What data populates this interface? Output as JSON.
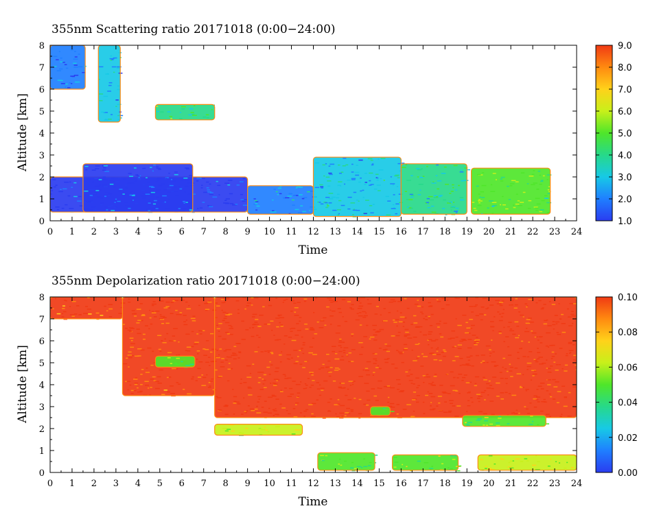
{
  "chart_data": [
    {
      "type": "heatmap",
      "title": "355nm Scattering ratio  20171018 (0:00−24:00)",
      "xlabel": "Time",
      "ylabel": "Altitude [km]",
      "xlim": [
        0,
        24
      ],
      "ylim": [
        0,
        8
      ],
      "xticks": [
        "0",
        "1",
        "2",
        "3",
        "4",
        "5",
        "6",
        "7",
        "8",
        "9",
        "10",
        "11",
        "12",
        "13",
        "14",
        "15",
        "16",
        "17",
        "18",
        "19",
        "20",
        "21",
        "22",
        "23",
        "24"
      ],
      "yticks": [
        "0",
        "1",
        "2",
        "3",
        "4",
        "5",
        "6",
        "7",
        "8"
      ],
      "colorbar": {
        "range": [
          1.0,
          9.0
        ],
        "ticks": [
          "1.0",
          "2.0",
          "3.0",
          "4.0",
          "5.0",
          "6.0",
          "7.0",
          "8.0",
          "9.0"
        ],
        "colors": [
          "#2a3cf0",
          "#1f7fff",
          "#17c9e6",
          "#27d98a",
          "#4fe62a",
          "#c8f01a",
          "#ffd21a",
          "#ff8a10",
          "#f03a14"
        ]
      },
      "regions": [
        {
          "t0": 0.0,
          "t1": 1.6,
          "z0": 6.0,
          "z1": 8.0,
          "value": 2.2
        },
        {
          "t0": 0.0,
          "t1": 9.0,
          "z0": 0.4,
          "z1": 2.0,
          "value": 1.6
        },
        {
          "t0": 1.5,
          "t1": 6.5,
          "z0": 0.4,
          "z1": 2.6,
          "value": 1.7
        },
        {
          "t0": 9.0,
          "t1": 12.0,
          "z0": 0.3,
          "z1": 1.6,
          "value": 2.4
        },
        {
          "t0": 12.0,
          "t1": 16.0,
          "z0": 0.2,
          "z1": 2.9,
          "value": 3.2
        },
        {
          "t0": 16.0,
          "t1": 19.0,
          "z0": 0.3,
          "z1": 2.6,
          "value": 4.0
        },
        {
          "t0": 19.2,
          "t1": 22.8,
          "z0": 0.3,
          "z1": 2.4,
          "value": 4.8
        },
        {
          "t0": 2.2,
          "t1": 3.2,
          "z0": 4.5,
          "z1": 8.0,
          "value": 3.0
        },
        {
          "t0": 4.8,
          "t1": 7.5,
          "z0": 4.6,
          "z1": 5.3,
          "value": 4.2
        }
      ]
    },
    {
      "type": "heatmap",
      "title": "355nm Depolarization ratio  20171018 (0:00−24:00)",
      "xlabel": "Time",
      "ylabel": "Altitude [km]",
      "xlim": [
        0,
        24
      ],
      "ylim": [
        0,
        8
      ],
      "xticks": [
        "0",
        "1",
        "2",
        "3",
        "4",
        "5",
        "6",
        "7",
        "8",
        "9",
        "10",
        "11",
        "12",
        "13",
        "14",
        "15",
        "16",
        "17",
        "18",
        "19",
        "20",
        "21",
        "22",
        "23",
        "24"
      ],
      "yticks": [
        "0",
        "1",
        "2",
        "3",
        "4",
        "5",
        "6",
        "7",
        "8"
      ],
      "colorbar": {
        "range": [
          0.0,
          0.1
        ],
        "ticks": [
          "0.00",
          "0.02",
          "0.04",
          "0.06",
          "0.08",
          "0.10"
        ],
        "colors": [
          "#2a3cf0",
          "#1f7fff",
          "#17c9e6",
          "#27d98a",
          "#4fe62a",
          "#c8f01a",
          "#ffd21a",
          "#ff8a10",
          "#f03a14"
        ]
      },
      "regions": [
        {
          "t0": 0.0,
          "t1": 3.3,
          "z0": 7.0,
          "z1": 8.0,
          "value": 0.09
        },
        {
          "t0": 3.3,
          "t1": 7.5,
          "z0": 3.5,
          "z1": 8.0,
          "value": 0.095
        },
        {
          "t0": 7.5,
          "t1": 24.0,
          "z0": 2.5,
          "z1": 8.0,
          "value": 0.098
        },
        {
          "t0": 4.8,
          "t1": 6.6,
          "z0": 4.8,
          "z1": 5.3,
          "value": 0.05
        },
        {
          "t0": 7.5,
          "t1": 11.5,
          "z0": 1.7,
          "z1": 2.2,
          "value": 0.06
        },
        {
          "t0": 12.2,
          "t1": 14.8,
          "z0": 0.1,
          "z1": 0.9,
          "value": 0.05
        },
        {
          "t0": 15.6,
          "t1": 18.6,
          "z0": 0.1,
          "z1": 0.8,
          "value": 0.055
        },
        {
          "t0": 19.5,
          "t1": 24.0,
          "z0": 0.1,
          "z1": 0.8,
          "value": 0.06
        },
        {
          "t0": 14.6,
          "t1": 15.5,
          "z0": 2.6,
          "z1": 3.0,
          "value": 0.05
        },
        {
          "t0": 18.8,
          "t1": 22.6,
          "z0": 2.1,
          "z1": 2.6,
          "value": 0.055
        }
      ]
    }
  ]
}
